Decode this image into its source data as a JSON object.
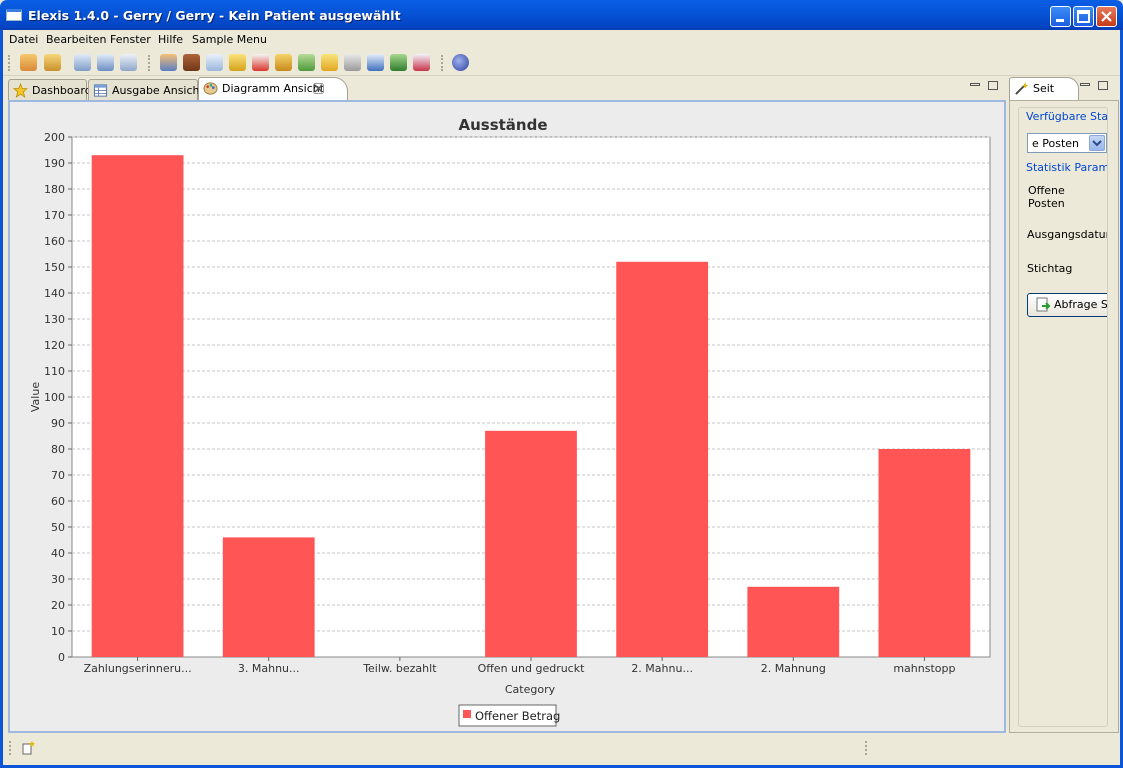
{
  "window": {
    "title": "Elexis 1.4.0 -  Gerry / Gerry  -  Kein Patient ausgewählt"
  },
  "menu": [
    "Datei",
    "Bearbeiten",
    "Fenster",
    "Hilfe",
    "Sample Menu"
  ],
  "toolbar_icons": [
    "home-icon",
    "sync-icon",
    "window-icon",
    "window2-icon",
    "window3-icon",
    "patient-icon",
    "book-icon",
    "mail-icon",
    "coins-icon",
    "pill-icon",
    "syringe-icon",
    "money-icon",
    "pencil-icon",
    "cart-icon",
    "graph-icon",
    "globe-icon",
    "chart-line-icon",
    "planet-icon"
  ],
  "tabs": [
    {
      "label": "Dashboard",
      "icon": "star-icon"
    },
    {
      "label": "Ausgabe Ansicht",
      "icon": "table-icon"
    },
    {
      "label": "Diagramm Ansicht",
      "icon": "palette-icon"
    }
  ],
  "side_view": {
    "tab_label": "Seit",
    "group1_title": "Verfügbare Statis",
    "select_value": "e Posten",
    "group2_title": "Statistik Paramet",
    "param_offene_line1": "Offene",
    "param_offene_line2": "Posten",
    "param_ausgangsdatum": "Ausgangsdatur",
    "param_stichtag": "Stichtag",
    "query_button": "Abfrage S"
  },
  "chart_data": {
    "type": "bar",
    "title": "Ausstände",
    "xlabel": "Category",
    "ylabel": "Value",
    "categories": [
      "Zahlungserinneru...",
      "3. Mahnu...",
      "Teilw. bezahlt",
      "Offen und gedruckt",
      "2. Mahnu...",
      "2. Mahnung",
      "mahnstopp"
    ],
    "series": [
      {
        "name": "Offener Betrag",
        "values": [
          193,
          46,
          0,
          87,
          152,
          27,
          80
        ],
        "color": "#FF5555"
      }
    ],
    "ylim": [
      0,
      200
    ],
    "ytick_step": 10,
    "grid": true,
    "legend": "bottom-center"
  }
}
